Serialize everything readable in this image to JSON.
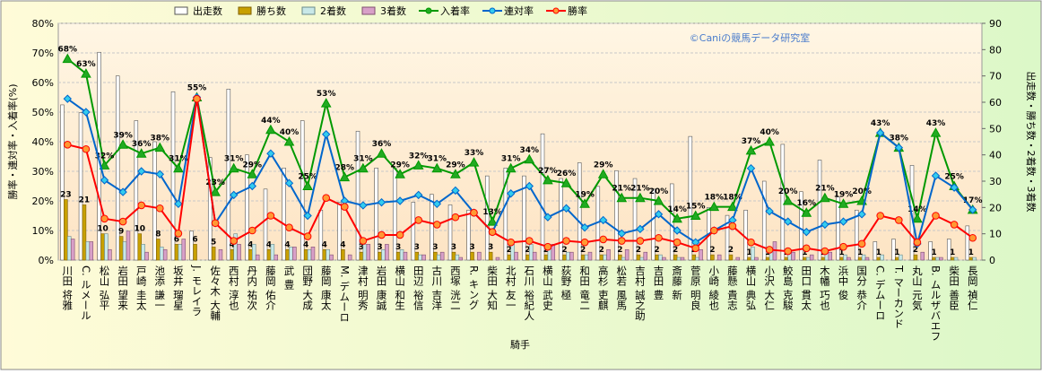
{
  "chart_data": {
    "type": "combo",
    "x_label": "騎手",
    "y_label": "勝率・連対率・入着率(%)",
    "y2_label": "出走数・勝ち数・2着数・3着数",
    "watermark": "©Caniの競馬データ研究室",
    "legend": "top",
    "grid": true,
    "categories": [
      "川田 将雅",
      "C. ルメール",
      "松山 弘平",
      "岩田 望来",
      "戸崎 圭太",
      "池添 謙一",
      "坂井 瑠星",
      "J. モレイラ",
      "佐々木 大輔",
      "西村 淳也",
      "丹内 祐次",
      "藤岡 佑介",
      "武 豊",
      "団野 大成",
      "藤岡 康太",
      "M. デムーロ",
      "津村 明秀",
      "岩田 康誠",
      "横山 和生",
      "田辺 裕信",
      "古川 吉洋",
      "西塚 洸二",
      "R. キング",
      "柴田 大知",
      "北村 友一",
      "石川 裕紀人",
      "横山 武史",
      "荻野 極",
      "和田 竜二",
      "高杉 吏麒",
      "松若 風馬",
      "吉村 誠之助",
      "吉田 豊",
      "斎藤 新",
      "菅原 明良",
      "小崎 綾也",
      "藤懸 貴志",
      "横山 典弘",
      "小沢 大仁",
      "鮫島 克駿",
      "田口 貫太",
      "木幡 巧也",
      "浜中 俊",
      "国分 恭介",
      "C. デムーロ",
      "T. マーカンド",
      "丸山 元気",
      "B. ムルザバエフ",
      "柴田 善臣",
      "長岡 禎仁"
    ],
    "ylim": [
      0,
      80
    ],
    "yticks": [
      {
        "value": 0,
        "label": "0%"
      },
      {
        "value": 10,
        "label": "10%"
      },
      {
        "value": 20,
        "label": "20%"
      },
      {
        "value": 30,
        "label": "30%"
      },
      {
        "value": 40,
        "label": "40%"
      },
      {
        "value": 50,
        "label": "50%"
      },
      {
        "value": 60,
        "label": "60%"
      },
      {
        "value": 70,
        "label": "70%"
      },
      {
        "value": 80,
        "label": "80%"
      }
    ],
    "y2lim": [
      0,
      90
    ],
    "y2ticks": [
      0,
      10,
      20,
      30,
      40,
      50,
      60,
      70,
      80,
      90
    ],
    "series": [
      {
        "name": "出走数",
        "type": "bar",
        "axis": "y2",
        "color": "#ffffff",
        "stroke": "#555555",
        "values": [
          59,
          56,
          79,
          70,
          53,
          45,
          64,
          11,
          39,
          65,
          40,
          27,
          35,
          53,
          19,
          22,
          49,
          35,
          35,
          22,
          25,
          21,
          19,
          32,
          35,
          32,
          48,
          31,
          37,
          28,
          34,
          31,
          27,
          29,
          47,
          20,
          17,
          19,
          30,
          44,
          26,
          38,
          24,
          19,
          7,
          8,
          36,
          7,
          8,
          13
        ]
      },
      {
        "name": "勝ち数",
        "type": "bar",
        "axis": "y2",
        "color": "#c8a000",
        "stroke": "#806000",
        "labels": true,
        "values": [
          23,
          21,
          10,
          9,
          10,
          8,
          6,
          6,
          5,
          4,
          4,
          4,
          4,
          4,
          4,
          4,
          3,
          3,
          3,
          3,
          3,
          3,
          3,
          3,
          2,
          2,
          2,
          2,
          2,
          2,
          2,
          2,
          2,
          2,
          2,
          2,
          2,
          1,
          1,
          1,
          1,
          1,
          1,
          1,
          1,
          1,
          2,
          1,
          1,
          1
        ]
      },
      {
        "name": "2着数",
        "type": "bar",
        "axis": "y2",
        "color": "#c8e8e8",
        "stroke": "#6a8a8a",
        "values": [
          9,
          7,
          10,
          7,
          6,
          5,
          6,
          0,
          0,
          10,
          6,
          6,
          5,
          4,
          4,
          0,
          6,
          4,
          4,
          2,
          2,
          2,
          0,
          0,
          6,
          6,
          5,
          3,
          2,
          2,
          1,
          1,
          2,
          1,
          1,
          0,
          0,
          5,
          4,
          4,
          1,
          3,
          2,
          2,
          2,
          2,
          0,
          1,
          1,
          1
        ]
      },
      {
        "name": "3着数",
        "type": "bar",
        "axis": "y2",
        "color": "#d8a0c8",
        "stroke": "#805070",
        "values": [
          8,
          7,
          4,
          11,
          3,
          4,
          8,
          0,
          4,
          6,
          2,
          2,
          5,
          5,
          2,
          2,
          6,
          6,
          3,
          2,
          3,
          1,
          3,
          1,
          3,
          3,
          6,
          3,
          3,
          4,
          4,
          3,
          1,
          1,
          4,
          2,
          1,
          1,
          7,
          3,
          2,
          3,
          1,
          1,
          0,
          0,
          3,
          1,
          0,
          0
        ]
      },
      {
        "name": "入着率",
        "type": "line",
        "color": "#009900",
        "marker": "triangle",
        "marker_color": "#22aa22",
        "values": [
          68,
          63,
          32,
          39,
          36,
          38,
          31,
          55,
          23,
          31,
          29,
          44,
          40,
          25,
          53,
          28,
          31,
          36,
          29,
          32,
          31,
          29,
          33,
          13,
          31,
          34,
          27,
          26,
          19,
          29,
          21,
          21,
          20,
          14,
          15,
          18,
          18,
          37,
          40,
          20,
          16,
          21,
          19,
          20,
          43,
          38,
          14,
          43,
          25,
          17
        ],
        "value_labels": [
          "68%",
          "63%",
          "32%",
          "39%",
          "36%",
          "38%",
          "31%",
          "55%",
          "23%",
          "31%",
          "29%",
          "44%",
          "40%",
          "25%",
          "53%",
          "28%",
          "31%",
          "36%",
          "29%",
          "32%",
          "31%",
          "29%",
          "33%",
          "13%",
          "31%",
          "34%",
          "27%",
          "26%",
          "19%",
          "29%",
          "21%",
          "21%",
          "20%",
          "14%",
          "15%",
          "18%",
          "18%",
          "37%",
          "40%",
          "20%",
          "16%",
          "21%",
          "19%",
          "20%",
          "43%",
          "38%",
          "14%",
          "43%",
          "25%",
          "17%"
        ]
      },
      {
        "name": "連対率",
        "type": "line",
        "color": "#0066cc",
        "marker": "diamond",
        "marker_color": "#33ccee",
        "values": [
          54.5,
          50,
          27,
          23,
          30,
          29,
          19,
          55,
          12.5,
          22,
          25,
          36,
          26,
          15,
          42.5,
          20,
          18.5,
          19.5,
          20,
          22,
          19,
          23.5,
          16,
          9.5,
          22.5,
          25,
          14.5,
          17.5,
          11,
          13.5,
          9,
          10.5,
          15.5,
          10,
          6,
          10,
          13.5,
          31,
          16.5,
          13,
          9.5,
          12,
          13,
          15.5,
          43,
          38,
          5.5,
          28.5,
          24.5,
          17
        ]
      },
      {
        "name": "勝率",
        "type": "line",
        "color": "#ff0000",
        "marker": "circle",
        "marker_color": "#ff9933",
        "values": [
          39,
          37.5,
          14,
          13,
          18.5,
          17.5,
          9,
          54.5,
          12.5,
          6.5,
          10,
          15,
          11,
          8,
          21,
          18,
          6.5,
          8.5,
          8.5,
          13.5,
          12,
          14.5,
          16,
          9.5,
          6,
          6.5,
          4.5,
          6.5,
          6,
          7,
          6.5,
          6.5,
          7.5,
          6,
          4,
          10,
          11.5,
          6,
          3.5,
          3,
          4,
          3,
          4.5,
          5.5,
          15,
          13.5,
          6,
          15,
          12,
          7.5
        ]
      }
    ]
  }
}
